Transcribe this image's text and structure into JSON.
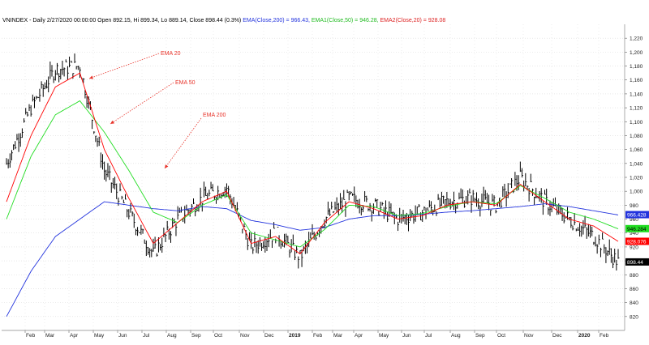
{
  "header": {
    "symbol": "VNINDEX",
    "period": "Daily",
    "date": "2/27/2020 00:00:00",
    "open": "Open 892.15",
    "high": "Hi 899.34",
    "low": "Lo 889.14",
    "close": "Close 898.44 (0.3%)",
    "ema200": "EMA(Close,200) = 966.43,",
    "ema50": "EMA1(Close,50) = 946.28,",
    "ema20": "EMA2(Close,20) = 928.08"
  },
  "colors": {
    "price": "#000000",
    "ema20": "#ff0000",
    "ema50": "#22dd22",
    "ema200": "#2233dd",
    "annotation": "#e8332a",
    "grid": "#d9d9d9"
  },
  "annotations": [
    "EMA 20",
    "EMA 50",
    "EMA 200"
  ],
  "chart_data": {
    "type": "line",
    "subtype": "candlestick_with_ema",
    "title": "VNINDEX - Daily 2/27/2020 00:00:00",
    "ylim": [
      800,
      1240
    ],
    "yticks": [
      820,
      840,
      860,
      880,
      900,
      920,
      940,
      960,
      980,
      1000,
      1020,
      1040,
      1060,
      1080,
      1100,
      1120,
      1140,
      1160,
      1180,
      1200,
      1220
    ],
    "ytick_labels": [
      "820",
      "840",
      "860",
      "880",
      "900",
      "920",
      "940",
      "960",
      "980",
      "1,000",
      "1,020",
      "1,040",
      "1,060",
      "1,080",
      "1,100",
      "1,120",
      "1,140",
      "1,160",
      "1,180",
      "1,200",
      "1,220"
    ],
    "xticks": [
      "Feb",
      "Mar",
      "Apr",
      "May",
      "Jun",
      "Jul",
      "Aug",
      "Sep",
      "Oct",
      "Nov",
      "Dec",
      "2019",
      "Feb",
      "Mar",
      "Apr",
      "May",
      "Jun",
      "Jul",
      "Aug",
      "Sep",
      "Oct",
      "Nov",
      "Dec",
      "2020",
      "Feb"
    ],
    "last_value_labels": {
      "ema200": "966.428",
      "ema50": "946.284",
      "ema20": "928.076",
      "close": "898.44"
    },
    "grid": true,
    "x_months": [
      "2018-01",
      "2018-02",
      "2018-03",
      "2018-04",
      "2018-05",
      "2018-06",
      "2018-07",
      "2018-08",
      "2018-09",
      "2018-10",
      "2018-11",
      "2018-12",
      "2019-01",
      "2019-02",
      "2019-03",
      "2019-04",
      "2019-05",
      "2019-06",
      "2019-07",
      "2019-08",
      "2019-09",
      "2019-10",
      "2019-11",
      "2019-12",
      "2020-01",
      "2020-02"
    ],
    "series": [
      {
        "name": "Close",
        "key": "close",
        "values": [
          1040,
          1120,
          1175,
          1180,
          1030,
          970,
          910,
          960,
          990,
          1005,
          920,
          940,
          905,
          960,
          990,
          980,
          960,
          970,
          985,
          990,
          980,
          1020,
          985,
          960,
          935,
          898
        ]
      },
      {
        "name": "EMA2(Close,20)",
        "key": "ema20",
        "values": [
          985,
          1080,
          1150,
          1170,
          1060,
          990,
          925,
          955,
          985,
          1000,
          925,
          935,
          910,
          955,
          985,
          975,
          960,
          965,
          980,
          985,
          980,
          1010,
          985,
          960,
          950,
          928
        ]
      },
      {
        "name": "EMA1(Close,50)",
        "key": "ema50",
        "values": [
          960,
          1050,
          1110,
          1130,
          1085,
          1030,
          970,
          955,
          980,
          995,
          940,
          930,
          920,
          945,
          980,
          978,
          965,
          968,
          978,
          985,
          982,
          1008,
          990,
          970,
          960,
          946
        ]
      },
      {
        "name": "EMA(Close,200)",
        "key": "ema200",
        "values": [
          820,
          885,
          935,
          960,
          985,
          980,
          975,
          972,
          978,
          975,
          958,
          952,
          944,
          948,
          960,
          965,
          965,
          967,
          970,
          972,
          975,
          978,
          982,
          978,
          972,
          966
        ]
      }
    ]
  }
}
